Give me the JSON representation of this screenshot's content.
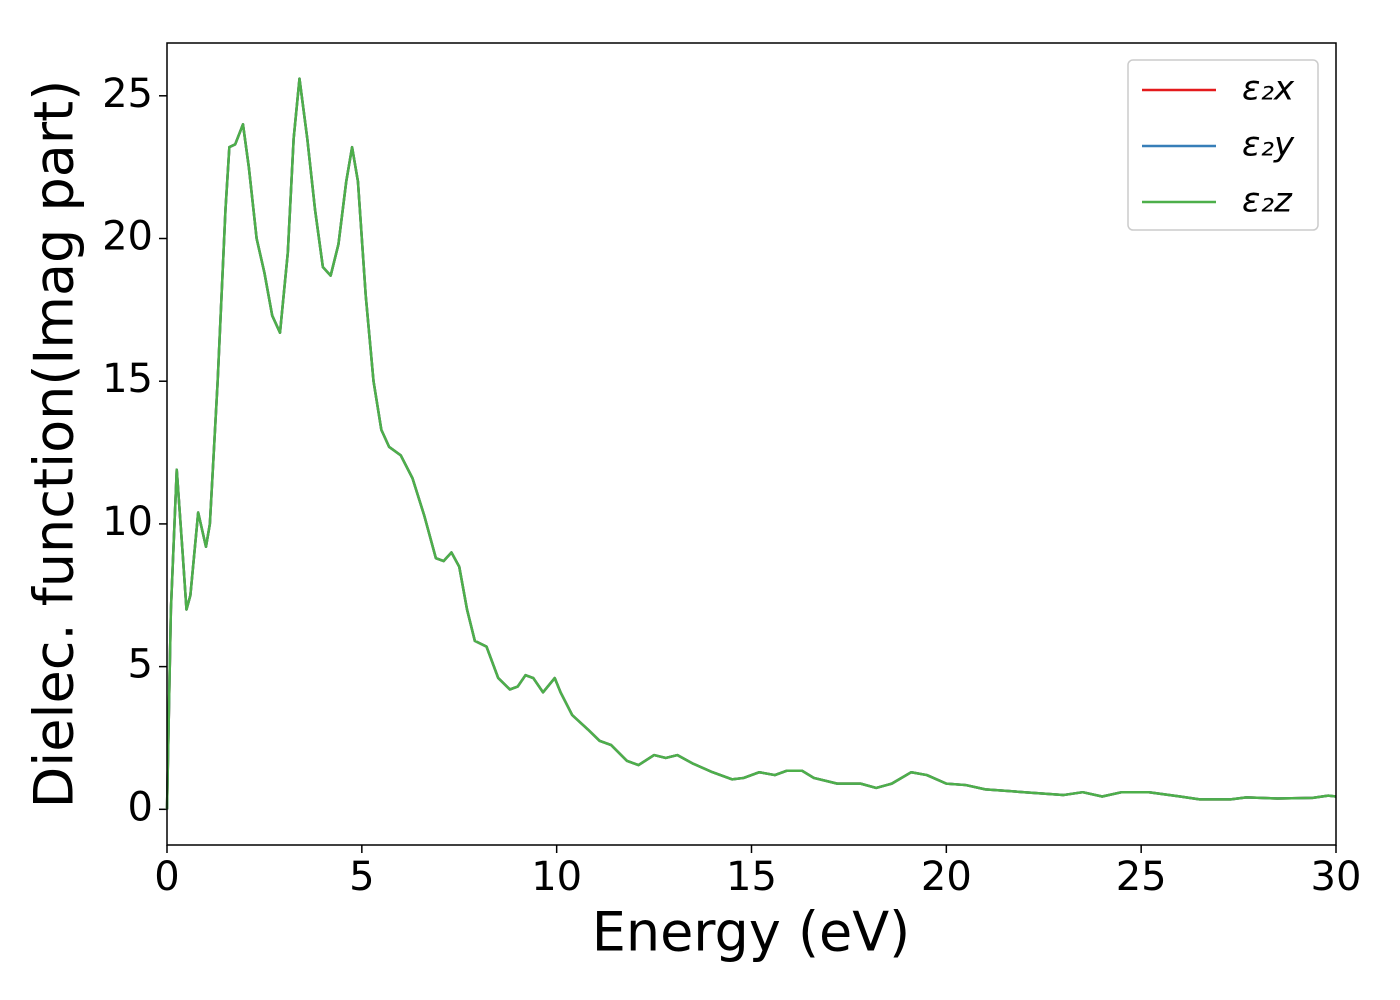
{
  "chart_data": {
    "type": "line",
    "xlabel": "Energy (eV)",
    "ylabel": "Dielec. function(Imag part)",
    "x": [
      0,
      0.1,
      0.25,
      0.4,
      0.5,
      0.6,
      0.8,
      1.0,
      1.1,
      1.3,
      1.5,
      1.6,
      1.75,
      1.95,
      2.1,
      2.3,
      2.5,
      2.7,
      2.9,
      3.1,
      3.25,
      3.4,
      3.6,
      3.8,
      4.0,
      4.2,
      4.4,
      4.6,
      4.75,
      4.9,
      5.1,
      5.3,
      5.5,
      5.7,
      6.0,
      6.3,
      6.6,
      6.9,
      7.1,
      7.3,
      7.5,
      7.7,
      7.9,
      8.2,
      8.5,
      8.8,
      9.0,
      9.2,
      9.4,
      9.65,
      9.95,
      10.1,
      10.4,
      10.8,
      11.1,
      11.4,
      11.8,
      12.1,
      12.5,
      12.8,
      13.1,
      13.5,
      14.0,
      14.5,
      14.8,
      15.2,
      15.6,
      15.9,
      16.3,
      16.6,
      17.2,
      17.8,
      18.2,
      18.6,
      19.1,
      19.5,
      20.0,
      20.5,
      21,
      22,
      23,
      23.5,
      24,
      24.5,
      25.2,
      26,
      26.5,
      27.3,
      27.7,
      28.5,
      29.4,
      29.8,
      30
    ],
    "series": [
      {
        "name": "ε₂x",
        "color": "#e41a1c",
        "values": [
          0,
          7,
          11.9,
          9,
          7,
          7.5,
          10.4,
          9.2,
          10,
          15,
          21,
          23.2,
          23.3,
          24,
          22.5,
          20,
          18.8,
          17.3,
          16.7,
          19.5,
          23.5,
          25.6,
          23.5,
          21,
          19,
          18.7,
          19.8,
          22,
          23.2,
          22,
          18,
          15,
          13.3,
          12.7,
          12.4,
          11.6,
          10.3,
          8.8,
          8.7,
          9,
          8.5,
          7,
          5.9,
          5.7,
          4.6,
          4.2,
          4.3,
          4.7,
          4.6,
          4.1,
          4.6,
          4.1,
          3.3,
          2.8,
          2.4,
          2.25,
          1.7,
          1.55,
          1.9,
          1.8,
          1.9,
          1.6,
          1.3,
          1.05,
          1.1,
          1.3,
          1.2,
          1.35,
          1.35,
          1.1,
          0.9,
          0.9,
          0.75,
          0.9,
          1.3,
          1.2,
          0.9,
          0.85,
          0.7,
          0.6,
          0.5,
          0.6,
          0.45,
          0.6,
          0.6,
          0.45,
          0.35,
          0.35,
          0.42,
          0.38,
          0.4,
          0.48,
          0.45
        ]
      },
      {
        "name": "ε₂y",
        "color": "#377eb8",
        "values": [
          0,
          7,
          11.9,
          9,
          7,
          7.5,
          10.4,
          9.2,
          10,
          15,
          21,
          23.2,
          23.3,
          24,
          22.5,
          20,
          18.8,
          17.3,
          16.7,
          19.5,
          23.5,
          25.6,
          23.5,
          21,
          19,
          18.7,
          19.8,
          22,
          23.2,
          22,
          18,
          15,
          13.3,
          12.7,
          12.4,
          11.6,
          10.3,
          8.8,
          8.7,
          9,
          8.5,
          7,
          5.9,
          5.7,
          4.6,
          4.2,
          4.3,
          4.7,
          4.6,
          4.1,
          4.6,
          4.1,
          3.3,
          2.8,
          2.4,
          2.25,
          1.7,
          1.55,
          1.9,
          1.8,
          1.9,
          1.6,
          1.3,
          1.05,
          1.1,
          1.3,
          1.2,
          1.35,
          1.35,
          1.1,
          0.9,
          0.9,
          0.75,
          0.9,
          1.3,
          1.2,
          0.9,
          0.85,
          0.7,
          0.6,
          0.5,
          0.6,
          0.45,
          0.6,
          0.6,
          0.45,
          0.35,
          0.35,
          0.42,
          0.38,
          0.4,
          0.48,
          0.45
        ]
      },
      {
        "name": "ε₂z",
        "color": "#4daf4a",
        "values": [
          0,
          7,
          11.9,
          9,
          7,
          7.5,
          10.4,
          9.2,
          10,
          15,
          21,
          23.2,
          23.3,
          24,
          22.5,
          20,
          18.8,
          17.3,
          16.7,
          19.5,
          23.5,
          25.6,
          23.5,
          21,
          19,
          18.7,
          19.8,
          22,
          23.2,
          22,
          18,
          15,
          13.3,
          12.7,
          12.4,
          11.6,
          10.3,
          8.8,
          8.7,
          9,
          8.5,
          7,
          5.9,
          5.7,
          4.6,
          4.2,
          4.3,
          4.7,
          4.6,
          4.1,
          4.6,
          4.1,
          3.3,
          2.8,
          2.4,
          2.25,
          1.7,
          1.55,
          1.9,
          1.8,
          1.9,
          1.6,
          1.3,
          1.05,
          1.1,
          1.3,
          1.2,
          1.35,
          1.35,
          1.1,
          0.9,
          0.9,
          0.75,
          0.9,
          1.3,
          1.2,
          0.9,
          0.85,
          0.7,
          0.6,
          0.5,
          0.6,
          0.45,
          0.6,
          0.6,
          0.45,
          0.35,
          0.35,
          0.42,
          0.38,
          0.4,
          0.48,
          0.45
        ]
      }
    ],
    "xlim": [
      0,
      30
    ],
    "xticks": [
      0,
      5,
      10,
      15,
      20,
      25,
      30
    ],
    "ylim": [
      -1.25,
      26.85
    ],
    "yticks": [
      0,
      5,
      10,
      15,
      20,
      25
    ],
    "legend": "upper right",
    "grid": false
  }
}
